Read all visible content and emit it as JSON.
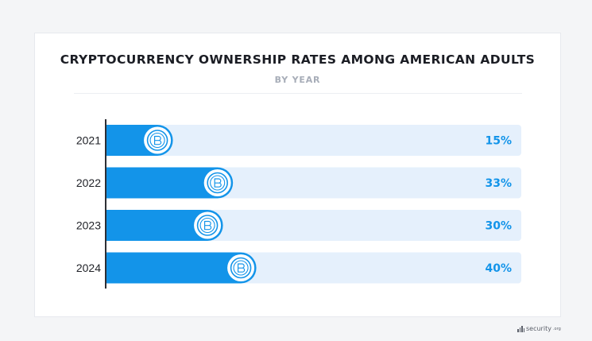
{
  "page": {
    "title": "CRYPTOCURRENCY OWNERSHIP RATES AMONG AMERICAN ADULTS",
    "subtitle": "BY YEAR",
    "brand_name": "security",
    "brand_suffix": ".org"
  },
  "colors": {
    "bar_fill": "#1394e9",
    "track_fill": "#e5f0fc",
    "value_text": "#1394e9",
    "axis": "#2d2f35",
    "category_text": "#1f2127",
    "icon_ring": "#1394e9"
  },
  "icons": {
    "bar_end": "crypto-coin-icon",
    "brand": "signal-bars-icon"
  },
  "chart_data": {
    "type": "bar",
    "orientation": "horizontal",
    "title": "CRYPTOCURRENCY OWNERSHIP RATES AMONG AMERICAN ADULTS",
    "subtitle": "BY YEAR",
    "xlabel": "",
    "ylabel": "",
    "categories": [
      "2021",
      "2022",
      "2023",
      "2024"
    ],
    "values": [
      15,
      33,
      30,
      40
    ],
    "value_labels": [
      "15%",
      "33%",
      "30%",
      "40%"
    ],
    "unit": "%",
    "xlim": [
      0,
      100
    ],
    "grid": false,
    "legend": "none"
  }
}
